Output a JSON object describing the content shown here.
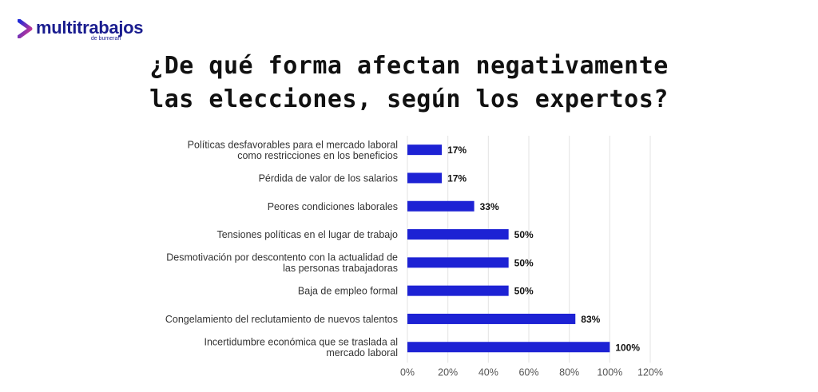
{
  "logo": {
    "brand": "multitrabajos",
    "sub": "de bumeran",
    "color": "#1a1d8f",
    "gradient": [
      "#1e2ad8",
      "#e23a8a"
    ]
  },
  "title": {
    "line1": "¿De qué forma afectan negativamente",
    "line2": "las elecciones, según los expertos?"
  },
  "chart_data": {
    "type": "bar",
    "orientation": "horizontal",
    "categories": [
      [
        "Políticas desfavorables para el mercado laboral",
        "como restricciones en los beneficios"
      ],
      [
        "Pérdida de valor de los salarios"
      ],
      [
        "Peores condiciones laborales"
      ],
      [
        "Tensiones políticas en el lugar de trabajo"
      ],
      [
        "Desmotivación por descontento con la actualidad de",
        "las personas trabajadoras"
      ],
      [
        "Baja de empleo formal"
      ],
      [
        "Congelamiento del reclutamiento de nuevos talentos"
      ],
      [
        "Incertidumbre económica que se traslada al",
        "mercado laboral"
      ]
    ],
    "values": [
      17,
      17,
      33,
      50,
      50,
      50,
      83,
      100
    ],
    "value_labels": [
      "17%",
      "17%",
      "33%",
      "50%",
      "50%",
      "50%",
      "83%",
      "100%"
    ],
    "xlim": [
      0,
      120
    ],
    "ticks": [
      "0%",
      "20%",
      "40%",
      "60%",
      "80%",
      "100%",
      "120%"
    ],
    "grid": true,
    "bar_color": "#1d22d4",
    "grid_color": "#e3e3e3"
  }
}
